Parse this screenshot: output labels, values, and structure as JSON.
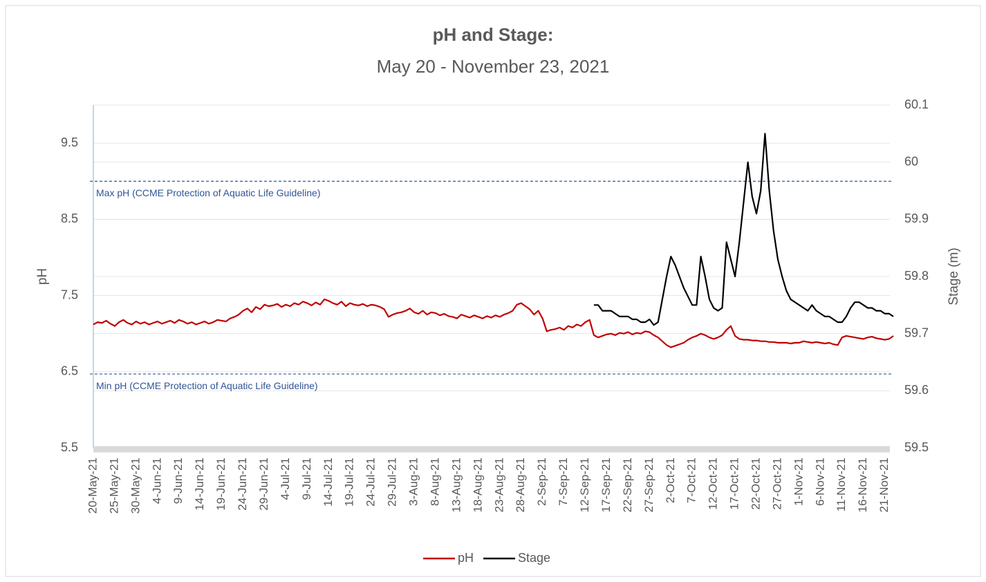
{
  "chart_data": {
    "type": "line",
    "title": "pH and Stage:",
    "subtitle": "May 20 - November 23, 2021",
    "y_label": "pH",
    "y2_label": "Stage (m)",
    "ylim": [
      5.5,
      10.0
    ],
    "yticks": [
      5.5,
      6.5,
      7.5,
      8.5,
      9.5
    ],
    "y2lim": [
      59.5,
      60.1
    ],
    "y2ticks": [
      59.5,
      59.6,
      59.7,
      59.8,
      59.9,
      60,
      60.1
    ],
    "grid": true,
    "legend": "bottom",
    "annotations": [
      {
        "label": "Max pH (CCME Protection of Aquatic Life Guideline)",
        "value": 9.0,
        "color": "#2f5597"
      },
      {
        "label": "Min pH (CCME Protection of Aquatic Life Guideline)",
        "value": 6.47,
        "color": "#2f5597"
      }
    ],
    "categories": [
      "20-May-21",
      null,
      null,
      null,
      null,
      "25-May-21",
      null,
      null,
      null,
      null,
      "30-May-21",
      null,
      null,
      null,
      null,
      "4-Jun-21",
      null,
      null,
      null,
      null,
      "9-Jun-21",
      null,
      null,
      null,
      null,
      "14-Jun-21",
      null,
      null,
      null,
      null,
      "19-Jun-21",
      null,
      null,
      null,
      null,
      "24-Jun-21",
      null,
      null,
      null,
      null,
      "29-Jun-21",
      null,
      null,
      null,
      null,
      "4-Jul-21",
      null,
      null,
      null,
      null,
      "9-Jul-21",
      null,
      null,
      null,
      null,
      "14-Jul-21",
      null,
      null,
      null,
      null,
      "19-Jul-21",
      null,
      null,
      null,
      null,
      "24-Jul-21",
      null,
      null,
      null,
      null,
      "29-Jul-21",
      null,
      null,
      null,
      null,
      "3-Aug-21",
      null,
      null,
      null,
      null,
      "8-Aug-21",
      null,
      null,
      null,
      null,
      "13-Aug-21",
      null,
      null,
      null,
      null,
      "18-Aug-21",
      null,
      null,
      null,
      null,
      "23-Aug-21",
      null,
      null,
      null,
      null,
      "28-Aug-21",
      null,
      null,
      null,
      null,
      "2-Sep-21",
      null,
      null,
      null,
      null,
      "7-Sep-21",
      null,
      null,
      null,
      null,
      "12-Sep-21",
      null,
      null,
      null,
      null,
      "17-Sep-21",
      null,
      null,
      null,
      null,
      "22-Sep-21",
      null,
      null,
      null,
      null,
      "27-Sep-21",
      null,
      null,
      null,
      null,
      "2-Oct-21",
      null,
      null,
      null,
      null,
      "7-Oct-21",
      null,
      null,
      null,
      null,
      "12-Oct-21",
      null,
      null,
      null,
      null,
      "17-Oct-21",
      null,
      null,
      null,
      null,
      "22-Oct-21",
      null,
      null,
      null,
      null,
      "27-Oct-21",
      null,
      null,
      null,
      null,
      "1-Nov-21",
      null,
      null,
      null,
      null,
      "6-Nov-21",
      null,
      null,
      null,
      null,
      "11-Nov-21",
      null,
      null,
      null,
      null,
      "16-Nov-21",
      null,
      null,
      null,
      null,
      "21-Nov-21",
      null,
      null
    ],
    "series": [
      {
        "name": "pH",
        "color": "#c00000",
        "values": [
          7.12,
          7.15,
          7.14,
          7.17,
          7.13,
          7.1,
          7.15,
          7.18,
          7.14,
          7.12,
          7.16,
          7.13,
          7.15,
          7.12,
          7.14,
          7.16,
          7.13,
          7.15,
          7.17,
          7.14,
          7.18,
          7.16,
          7.13,
          7.15,
          7.12,
          7.14,
          7.16,
          7.13,
          7.15,
          7.18,
          7.17,
          7.16,
          7.2,
          7.22,
          7.25,
          7.3,
          7.33,
          7.28,
          7.35,
          7.32,
          7.38,
          7.36,
          7.37,
          7.39,
          7.35,
          7.38,
          7.36,
          7.4,
          7.38,
          7.42,
          7.4,
          7.37,
          7.41,
          7.38,
          7.45,
          7.43,
          7.4,
          7.38,
          7.42,
          7.36,
          7.4,
          7.38,
          7.37,
          7.39,
          7.36,
          7.38,
          7.37,
          7.35,
          7.32,
          7.22,
          7.25,
          7.27,
          7.28,
          7.3,
          7.33,
          7.28,
          7.26,
          7.3,
          7.25,
          7.28,
          7.27,
          7.24,
          7.26,
          7.23,
          7.22,
          7.2,
          7.25,
          7.23,
          7.21,
          7.24,
          7.22,
          7.2,
          7.23,
          7.21,
          7.24,
          7.22,
          7.25,
          7.27,
          7.3,
          7.38,
          7.4,
          7.36,
          7.32,
          7.25,
          7.3,
          7.2,
          7.03,
          7.05,
          7.06,
          7.08,
          7.05,
          7.1,
          7.08,
          7.12,
          7.1,
          7.15,
          7.18,
          6.98,
          6.95,
          6.97,
          6.99,
          7.0,
          6.98,
          7.01,
          7.0,
          7.02,
          6.99,
          7.01,
          7.0,
          7.03,
          7.02,
          6.98,
          6.95,
          6.9,
          6.85,
          6.82,
          6.84,
          6.86,
          6.88,
          6.92,
          6.95,
          6.97,
          7.0,
          6.98,
          6.95,
          6.93,
          6.95,
          6.98,
          7.05,
          7.1,
          6.97,
          6.93,
          6.92,
          6.92,
          6.91,
          6.91,
          6.9,
          6.9,
          6.89,
          6.89,
          6.88,
          6.88,
          6.88,
          6.87,
          6.88,
          6.88,
          6.9,
          6.89,
          6.88,
          6.89,
          6.88,
          6.87,
          6.88,
          6.86,
          6.85,
          6.95,
          6.97,
          6.96,
          6.95,
          6.94,
          6.93,
          6.95,
          6.96,
          6.94,
          6.93,
          6.92,
          6.93,
          6.97
        ]
      },
      {
        "name": "Stage",
        "color": "#000000",
        "axis": "y2",
        "values": [
          null,
          null,
          null,
          null,
          null,
          null,
          null,
          null,
          null,
          null,
          null,
          null,
          null,
          null,
          null,
          null,
          null,
          null,
          null,
          null,
          null,
          null,
          null,
          null,
          null,
          null,
          null,
          null,
          null,
          null,
          null,
          null,
          null,
          null,
          null,
          null,
          null,
          null,
          null,
          null,
          null,
          null,
          null,
          null,
          null,
          null,
          null,
          null,
          null,
          null,
          null,
          null,
          null,
          null,
          null,
          null,
          null,
          null,
          null,
          null,
          null,
          null,
          null,
          null,
          null,
          null,
          null,
          null,
          null,
          null,
          null,
          null,
          null,
          null,
          null,
          null,
          null,
          null,
          null,
          null,
          null,
          null,
          null,
          null,
          null,
          null,
          null,
          null,
          null,
          null,
          null,
          null,
          null,
          null,
          null,
          null,
          null,
          null,
          null,
          null,
          null,
          null,
          null,
          null,
          null,
          null,
          null,
          null,
          null,
          null,
          null,
          null,
          null,
          null,
          null,
          null,
          null,
          59.75,
          59.75,
          59.74,
          59.74,
          59.74,
          59.735,
          59.73,
          59.73,
          59.73,
          59.725,
          59.725,
          59.72,
          59.72,
          59.725,
          59.715,
          59.72,
          59.76,
          59.8,
          59.835,
          59.82,
          59.8,
          59.78,
          59.765,
          59.75,
          59.75,
          59.835,
          59.8,
          59.76,
          59.745,
          59.74,
          59.745,
          59.86,
          59.83,
          59.8,
          59.86,
          59.93,
          60.0,
          59.94,
          59.91,
          59.95,
          60.05,
          59.95,
          59.88,
          59.83,
          59.8,
          59.775,
          59.76,
          59.755,
          59.75,
          59.745,
          59.74,
          59.75,
          59.74,
          59.735,
          59.73,
          59.73,
          59.725,
          59.72,
          59.72,
          59.73,
          59.745,
          59.755,
          59.755,
          59.75,
          59.745,
          59.745,
          59.74,
          59.74,
          59.735,
          59.735,
          59.73
        ]
      }
    ]
  }
}
